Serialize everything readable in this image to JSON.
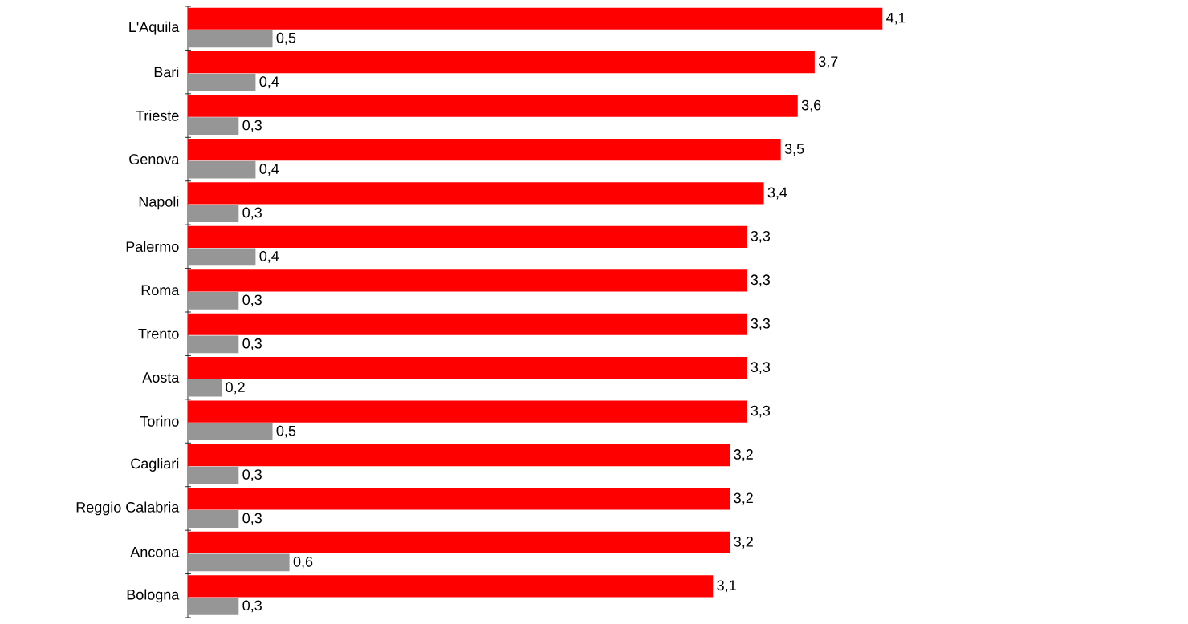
{
  "chart_data": {
    "type": "bar",
    "orientation": "horizontal",
    "categories": [
      "L'Aquila",
      "Bari",
      "Trieste",
      "Genova",
      "Napoli",
      "Palermo",
      "Roma",
      "Trento",
      "Aosta",
      "Torino",
      "Cagliari",
      "Reggio Calabria",
      "Ancona",
      "Bologna"
    ],
    "series": [
      {
        "color": "#ff0000",
        "values": [
          4.1,
          3.7,
          3.6,
          3.5,
          3.4,
          3.3,
          3.3,
          3.3,
          3.3,
          3.3,
          3.2,
          3.2,
          3.2,
          3.1
        ],
        "value_labels": [
          "4,1",
          "3,7",
          "3,6",
          "3,5",
          "3,4",
          "3,3",
          "3,3",
          "3,3",
          "3,3",
          "3,3",
          "3,2",
          "3,2",
          "3,2",
          "3,1"
        ]
      },
      {
        "color": "#969696",
        "values": [
          0.5,
          0.4,
          0.3,
          0.4,
          0.3,
          0.4,
          0.3,
          0.3,
          0.2,
          0.5,
          0.3,
          0.3,
          0.6,
          0.3
        ],
        "value_labels": [
          "0,5",
          "0,4",
          "0,3",
          "0,4",
          "0,3",
          "0,4",
          "0,3",
          "0,3",
          "0,2",
          "0,5",
          "0,3",
          "0,3",
          "0,6",
          "0,3"
        ]
      }
    ],
    "tick_labels": "y"
  }
}
